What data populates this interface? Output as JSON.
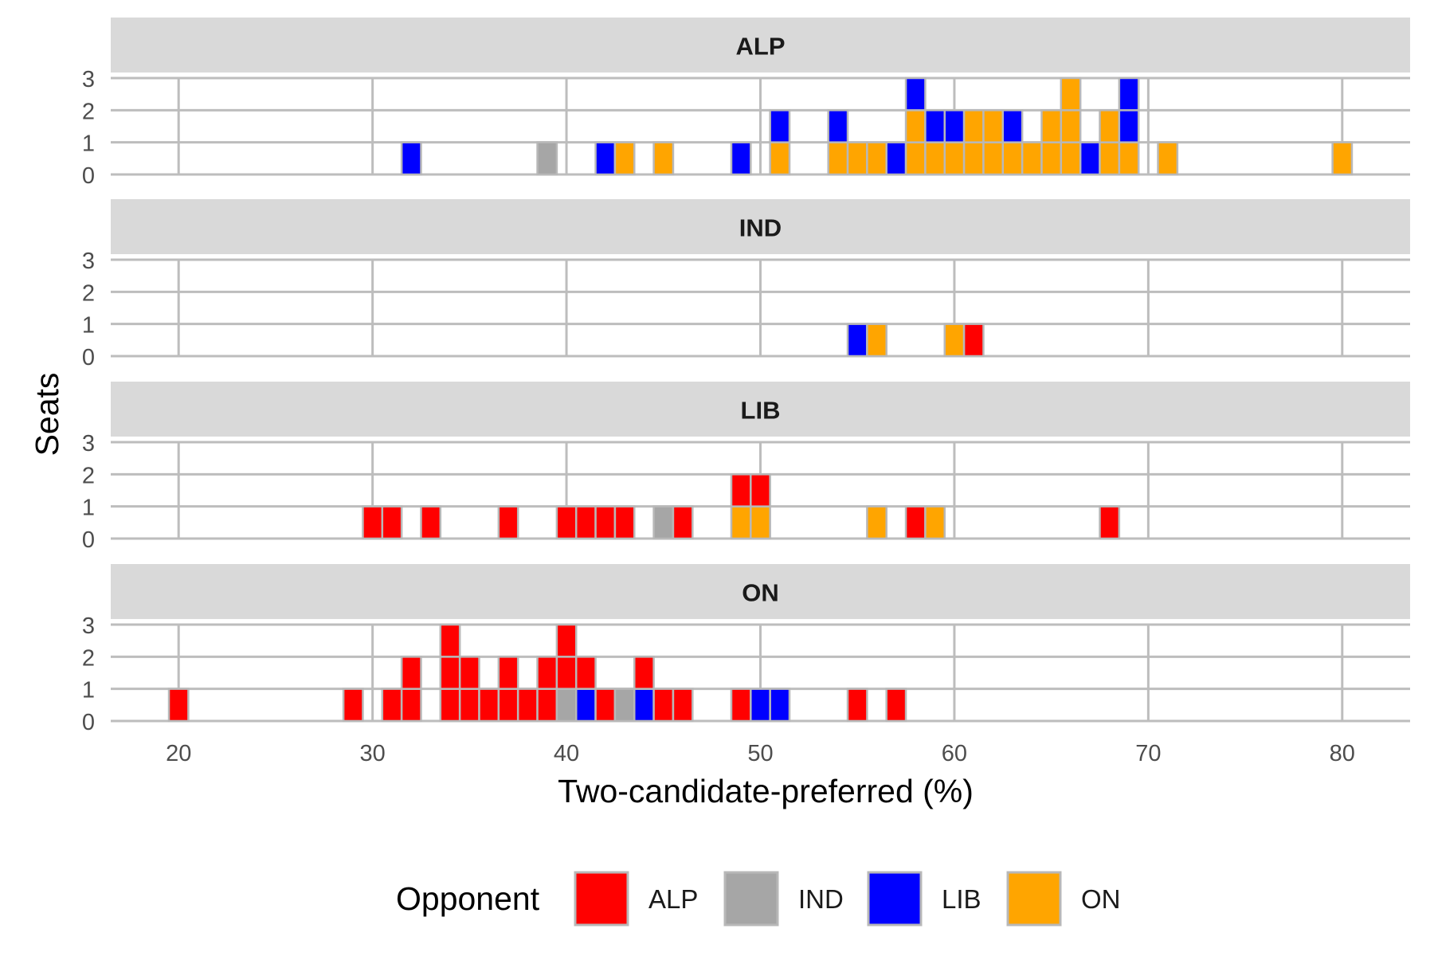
{
  "chart_data": {
    "type": "bar",
    "subtype": "stacked-histogram-faceted",
    "xlabel": "Two-candidate-preferred (%)",
    "ylabel": "Seats",
    "xlim": [
      16.5,
      83.5
    ],
    "x_ticks": [
      20,
      30,
      40,
      50,
      60,
      70,
      80
    ],
    "ylim": [
      0,
      3
    ],
    "y_ticks": [
      0,
      1,
      2,
      3
    ],
    "bin_width": 1,
    "grid": true,
    "legend": {
      "title": "Opponent",
      "position": "bottom",
      "entries": [
        {
          "label": "ALP",
          "color": "#ff0000"
        },
        {
          "label": "IND",
          "color": "#a6a6a6"
        },
        {
          "label": "LIB",
          "color": "#0000ff"
        },
        {
          "label": "ON",
          "color": "#ffa500"
        }
      ]
    },
    "facets": [
      {
        "label": "ALP",
        "bars": [
          {
            "x": 32,
            "stack": [
              "LIB"
            ]
          },
          {
            "x": 39,
            "stack": [
              "IND"
            ]
          },
          {
            "x": 42,
            "stack": [
              "LIB"
            ]
          },
          {
            "x": 43,
            "stack": [
              "ON"
            ]
          },
          {
            "x": 45,
            "stack": [
              "ON"
            ]
          },
          {
            "x": 49,
            "stack": [
              "LIB"
            ]
          },
          {
            "x": 51,
            "stack": [
              "ON",
              "LIB"
            ]
          },
          {
            "x": 54,
            "stack": [
              "ON",
              "LIB"
            ]
          },
          {
            "x": 55,
            "stack": [
              "ON"
            ]
          },
          {
            "x": 56,
            "stack": [
              "ON"
            ]
          },
          {
            "x": 57,
            "stack": [
              "LIB"
            ]
          },
          {
            "x": 58,
            "stack": [
              "ON",
              "ON",
              "LIB"
            ]
          },
          {
            "x": 59,
            "stack": [
              "ON",
              "LIB"
            ]
          },
          {
            "x": 60,
            "stack": [
              "ON",
              "LIB"
            ]
          },
          {
            "x": 61,
            "stack": [
              "ON",
              "ON"
            ]
          },
          {
            "x": 62,
            "stack": [
              "ON",
              "ON"
            ]
          },
          {
            "x": 63,
            "stack": [
              "ON",
              "LIB"
            ]
          },
          {
            "x": 64,
            "stack": [
              "ON"
            ]
          },
          {
            "x": 65,
            "stack": [
              "ON",
              "ON"
            ]
          },
          {
            "x": 66,
            "stack": [
              "ON",
              "ON",
              "ON"
            ]
          },
          {
            "x": 67,
            "stack": [
              "LIB"
            ]
          },
          {
            "x": 68,
            "stack": [
              "ON",
              "ON"
            ]
          },
          {
            "x": 69,
            "stack": [
              "ON",
              "LIB",
              "LIB"
            ]
          },
          {
            "x": 71,
            "stack": [
              "ON"
            ]
          },
          {
            "x": 80,
            "stack": [
              "ON"
            ]
          }
        ]
      },
      {
        "label": "IND",
        "bars": [
          {
            "x": 55,
            "stack": [
              "LIB"
            ]
          },
          {
            "x": 56,
            "stack": [
              "ON"
            ]
          },
          {
            "x": 60,
            "stack": [
              "ON"
            ]
          },
          {
            "x": 61,
            "stack": [
              "ALP"
            ]
          }
        ]
      },
      {
        "label": "LIB",
        "bars": [
          {
            "x": 30,
            "stack": [
              "ALP"
            ]
          },
          {
            "x": 31,
            "stack": [
              "ALP"
            ]
          },
          {
            "x": 33,
            "stack": [
              "ALP"
            ]
          },
          {
            "x": 37,
            "stack": [
              "ALP"
            ]
          },
          {
            "x": 40,
            "stack": [
              "ALP"
            ]
          },
          {
            "x": 41,
            "stack": [
              "ALP"
            ]
          },
          {
            "x": 42,
            "stack": [
              "ALP"
            ]
          },
          {
            "x": 43,
            "stack": [
              "ALP"
            ]
          },
          {
            "x": 45,
            "stack": [
              "IND"
            ]
          },
          {
            "x": 46,
            "stack": [
              "ALP"
            ]
          },
          {
            "x": 49,
            "stack": [
              "ON",
              "ALP"
            ]
          },
          {
            "x": 50,
            "stack": [
              "ON",
              "ALP"
            ]
          },
          {
            "x": 56,
            "stack": [
              "ON"
            ]
          },
          {
            "x": 58,
            "stack": [
              "ALP"
            ]
          },
          {
            "x": 59,
            "stack": [
              "ON"
            ]
          },
          {
            "x": 68,
            "stack": [
              "ALP"
            ]
          }
        ]
      },
      {
        "label": "ON",
        "bars": [
          {
            "x": 20,
            "stack": [
              "ALP"
            ]
          },
          {
            "x": 29,
            "stack": [
              "ALP"
            ]
          },
          {
            "x": 31,
            "stack": [
              "ALP"
            ]
          },
          {
            "x": 32,
            "stack": [
              "ALP",
              "ALP"
            ]
          },
          {
            "x": 34,
            "stack": [
              "ALP",
              "ALP",
              "ALP"
            ]
          },
          {
            "x": 35,
            "stack": [
              "ALP",
              "ALP"
            ]
          },
          {
            "x": 36,
            "stack": [
              "ALP"
            ]
          },
          {
            "x": 37,
            "stack": [
              "ALP",
              "ALP"
            ]
          },
          {
            "x": 38,
            "stack": [
              "ALP"
            ]
          },
          {
            "x": 39,
            "stack": [
              "ALP",
              "ALP"
            ]
          },
          {
            "x": 40,
            "stack": [
              "IND",
              "ALP",
              "ALP"
            ]
          },
          {
            "x": 41,
            "stack": [
              "LIB",
              "ALP"
            ]
          },
          {
            "x": 42,
            "stack": [
              "ALP"
            ]
          },
          {
            "x": 43,
            "stack": [
              "IND"
            ]
          },
          {
            "x": 44,
            "stack": [
              "LIB",
              "ALP"
            ]
          },
          {
            "x": 45,
            "stack": [
              "ALP"
            ]
          },
          {
            "x": 46,
            "stack": [
              "ALP"
            ]
          },
          {
            "x": 49,
            "stack": [
              "ALP"
            ]
          },
          {
            "x": 50,
            "stack": [
              "LIB"
            ]
          },
          {
            "x": 51,
            "stack": [
              "LIB"
            ]
          },
          {
            "x": 55,
            "stack": [
              "ALP"
            ]
          },
          {
            "x": 57,
            "stack": [
              "ALP"
            ]
          }
        ]
      }
    ]
  }
}
